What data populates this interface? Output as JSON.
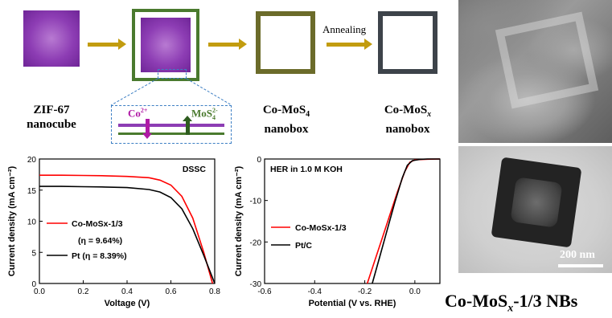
{
  "schematic": {
    "stage1_line1": "ZIF-67",
    "stage1_line2": "nanocube",
    "stage3_line1": "Co-MoS",
    "stage3_sub": "4",
    "stage3_line2": "nanobox",
    "stage4_line1": "Co-MoS",
    "stage4_sub": "x",
    "stage4_line2": "nanobox",
    "annealing_label": "Annealing",
    "inset_co_label": "Co",
    "inset_co_sup": "2+",
    "inset_mos_label": "MoS",
    "inset_mos_sub": "4",
    "inset_mos_sup": "2-",
    "colors": {
      "purple": "#8d3db4",
      "green_frame": "#4a7a2e",
      "olive_frame": "#6b6b2a",
      "gray_frame": "#3d434a",
      "arrow": "#c29c0f",
      "inset_border": "#3d7fc4"
    }
  },
  "chart_data": [
    {
      "type": "line",
      "annotation": "DSSC",
      "xlabel": "Voltage (V)",
      "ylabel": "Current density (mA cm⁻²)",
      "xlim": [
        0.0,
        0.8
      ],
      "ylim": [
        0,
        20
      ],
      "xticks": [
        "0.0",
        "0.2",
        "0.4",
        "0.6",
        "0.8"
      ],
      "yticks": [
        "0",
        "5",
        "10",
        "15",
        "20"
      ],
      "legend_position": "bottom-left",
      "series": [
        {
          "name": "Co-MoSx-1/3",
          "color": "#ff0000",
          "note": "(η = 9.64%)",
          "x": [
            0.0,
            0.1,
            0.2,
            0.3,
            0.4,
            0.5,
            0.55,
            0.6,
            0.65,
            0.7,
            0.75,
            0.79
          ],
          "y": [
            17.4,
            17.4,
            17.35,
            17.3,
            17.2,
            17.0,
            16.6,
            15.8,
            14.0,
            10.5,
            5.0,
            0.0
          ]
        },
        {
          "name": "Pt (η = 8.39%)",
          "color": "#000000",
          "x": [
            0.0,
            0.1,
            0.2,
            0.3,
            0.4,
            0.5,
            0.55,
            0.6,
            0.65,
            0.7,
            0.75,
            0.8
          ],
          "y": [
            15.6,
            15.6,
            15.55,
            15.5,
            15.4,
            15.1,
            14.7,
            13.8,
            12.0,
            8.8,
            4.5,
            0.0
          ]
        }
      ]
    },
    {
      "type": "line",
      "annotation": "HER in 1.0 M KOH",
      "xlabel": "Potential (V vs. RHE)",
      "ylabel": "Current density (mA cm⁻²)",
      "xlim": [
        -0.6,
        0.1
      ],
      "ylim": [
        -30,
        0
      ],
      "xticks": [
        "-0.6",
        "-0.4",
        "-0.2",
        "0.0"
      ],
      "yticks": [
        "0",
        "-10",
        "-20",
        "-30"
      ],
      "legend_position": "bottom-left",
      "series": [
        {
          "name": "Co-MoSx-1/3",
          "color": "#ff0000",
          "x": [
            -0.19,
            -0.16,
            -0.13,
            -0.1,
            -0.07,
            -0.04,
            -0.02,
            0.0,
            0.05,
            0.1
          ],
          "y": [
            -30,
            -24.5,
            -19,
            -13.5,
            -8,
            -3,
            -0.8,
            -0.2,
            -0.05,
            0
          ]
        },
        {
          "name": "Pt/C",
          "color": "#000000",
          "x": [
            -0.17,
            -0.14,
            -0.11,
            -0.08,
            -0.05,
            -0.03,
            -0.01,
            0.02,
            0.05,
            0.1
          ],
          "y": [
            -30,
            -23.5,
            -17,
            -10.5,
            -4.5,
            -1.5,
            -0.4,
            -0.1,
            0,
            0
          ]
        }
      ]
    }
  ],
  "micrographs": {
    "tem_scalebar": "200 nm"
  },
  "product_label": {
    "main": "Co-MoS",
    "sub": "x",
    "suffix": "-1/3 NBs"
  }
}
